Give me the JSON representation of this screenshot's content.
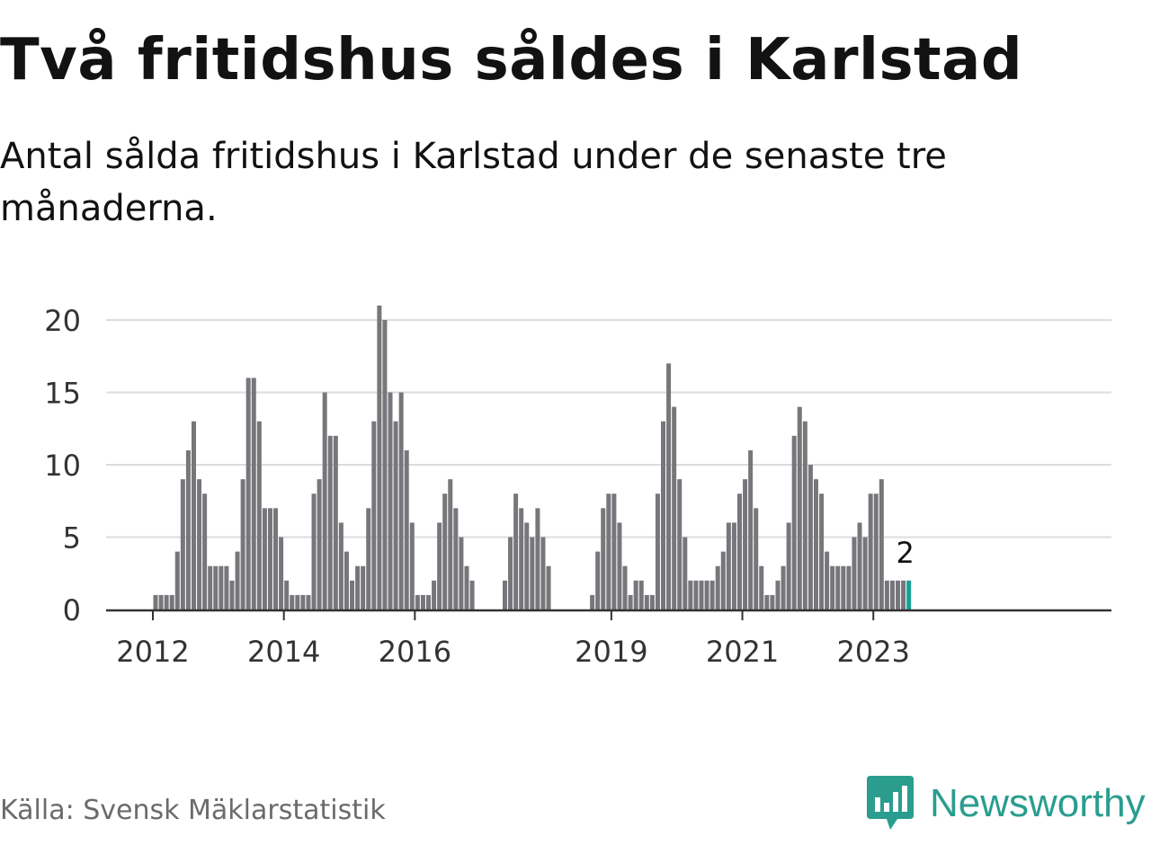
{
  "header": {
    "title": "Två fritidshus såldes i Karlstad",
    "subtitle": "Antal sålda fritidshus i Karlstad under de senaste tre månaderna."
  },
  "footer": {
    "source": "Källa: Svensk Mäklarstatistik",
    "brand": "Newsworthy",
    "brand_icon": "bar-chart-speech-bubble-icon"
  },
  "colors": {
    "bar": "#77767b",
    "highlight": "#18a093",
    "grid": "#dcdcdc",
    "axis": "#333333",
    "brand": "#2a9d8f"
  },
  "chart_data": {
    "type": "bar",
    "title": "",
    "xlabel": "",
    "ylabel": "",
    "ylim": [
      0,
      21
    ],
    "y_ticks": [
      0,
      5,
      10,
      15,
      20
    ],
    "x_ticks": [
      "2012",
      "2014",
      "2016",
      "2019",
      "2021",
      "2023"
    ],
    "start": "2012-01",
    "highlight_label": "2",
    "values": [
      1,
      1,
      1,
      1,
      4,
      9,
      11,
      13,
      9,
      8,
      3,
      3,
      3,
      3,
      2,
      4,
      9,
      16,
      16,
      13,
      7,
      7,
      7,
      5,
      2,
      1,
      1,
      1,
      1,
      8,
      9,
      15,
      12,
      12,
      6,
      4,
      2,
      3,
      3,
      7,
      13,
      21,
      20,
      15,
      13,
      15,
      11,
      6,
      1,
      1,
      1,
      2,
      6,
      8,
      9,
      7,
      5,
      3,
      2,
      0,
      0,
      0,
      0,
      0,
      2,
      5,
      8,
      7,
      6,
      5,
      7,
      5,
      3,
      0,
      0,
      0,
      0,
      0,
      0,
      0,
      1,
      4,
      7,
      8,
      8,
      6,
      3,
      1,
      2,
      2,
      1,
      1,
      8,
      13,
      17,
      14,
      9,
      5,
      2,
      2,
      2,
      2,
      2,
      3,
      4,
      6,
      6,
      8,
      9,
      11,
      7,
      3,
      1,
      1,
      2,
      3,
      6,
      12,
      14,
      13,
      10,
      9,
      8,
      4,
      3,
      3,
      3,
      3,
      5,
      6,
      5,
      8,
      8,
      9,
      2,
      2,
      2,
      2,
      2
    ]
  }
}
